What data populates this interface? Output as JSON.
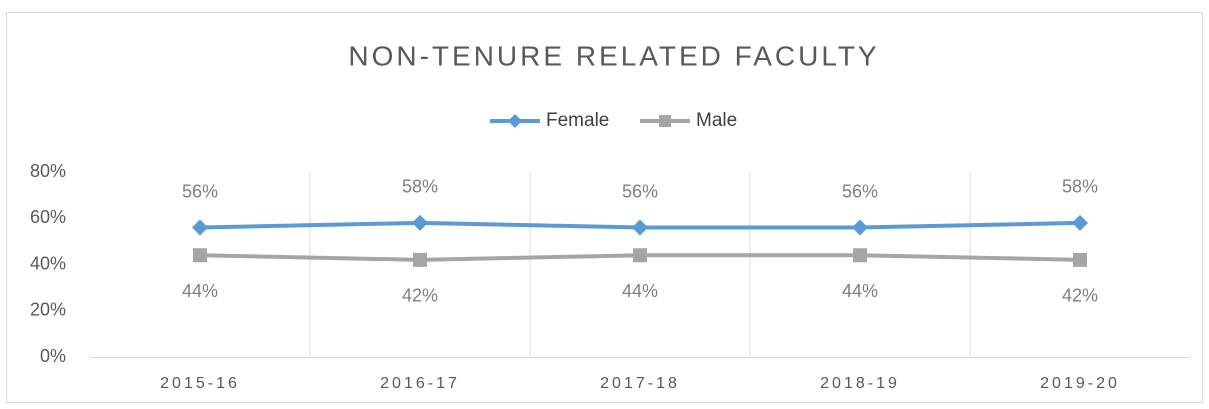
{
  "chart_data": {
    "type": "line",
    "title": "NON-TENURE RELATED FACULTY",
    "categories": [
      "2015-16",
      "2016-17",
      "2017-18",
      "2018-19",
      "2019-20"
    ],
    "series": [
      {
        "name": "Female",
        "color": "#5b9bd5",
        "marker": "diamond",
        "values": [
          56,
          58,
          56,
          56,
          58
        ],
        "value_labels": [
          "56%",
          "58%",
          "56%",
          "56%",
          "58%"
        ]
      },
      {
        "name": "Male",
        "color": "#a5a5a5",
        "marker": "square",
        "values": [
          44,
          42,
          44,
          44,
          42
        ],
        "value_labels": [
          "44%",
          "42%",
          "44%",
          "44%",
          "42%"
        ]
      }
    ],
    "ylim": [
      0,
      80
    ],
    "yticks": [
      {
        "value": 0,
        "label": "0%"
      },
      {
        "value": 20,
        "label": "20%"
      },
      {
        "value": 40,
        "label": "40%"
      },
      {
        "value": 60,
        "label": "60%"
      },
      {
        "value": 80,
        "label": "80%"
      }
    ],
    "legend": "top"
  }
}
